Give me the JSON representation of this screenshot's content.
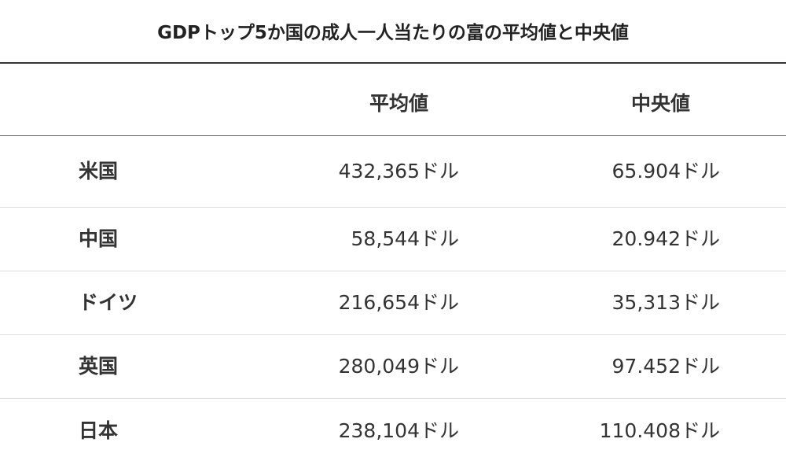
{
  "title": "GDPトップ5か国の成人一人当たりの富の平均値と中央値",
  "columns": {
    "mean": "平均値",
    "median": "中央値"
  },
  "rows": [
    {
      "country": "米国",
      "mean": "432,365ドル",
      "median": "65.904ドル"
    },
    {
      "country": "中国",
      "mean": "58,544ドル",
      "median": "20.942ドル"
    },
    {
      "country": "ドイツ",
      "mean": "216,654ドル",
      "median": "35,313ドル"
    },
    {
      "country": "英国",
      "mean": "280,049ドル",
      "median": "97.452ドル"
    },
    {
      "country": "日本",
      "mean": "238,104ドル",
      "median": "110.408ドル"
    }
  ]
}
